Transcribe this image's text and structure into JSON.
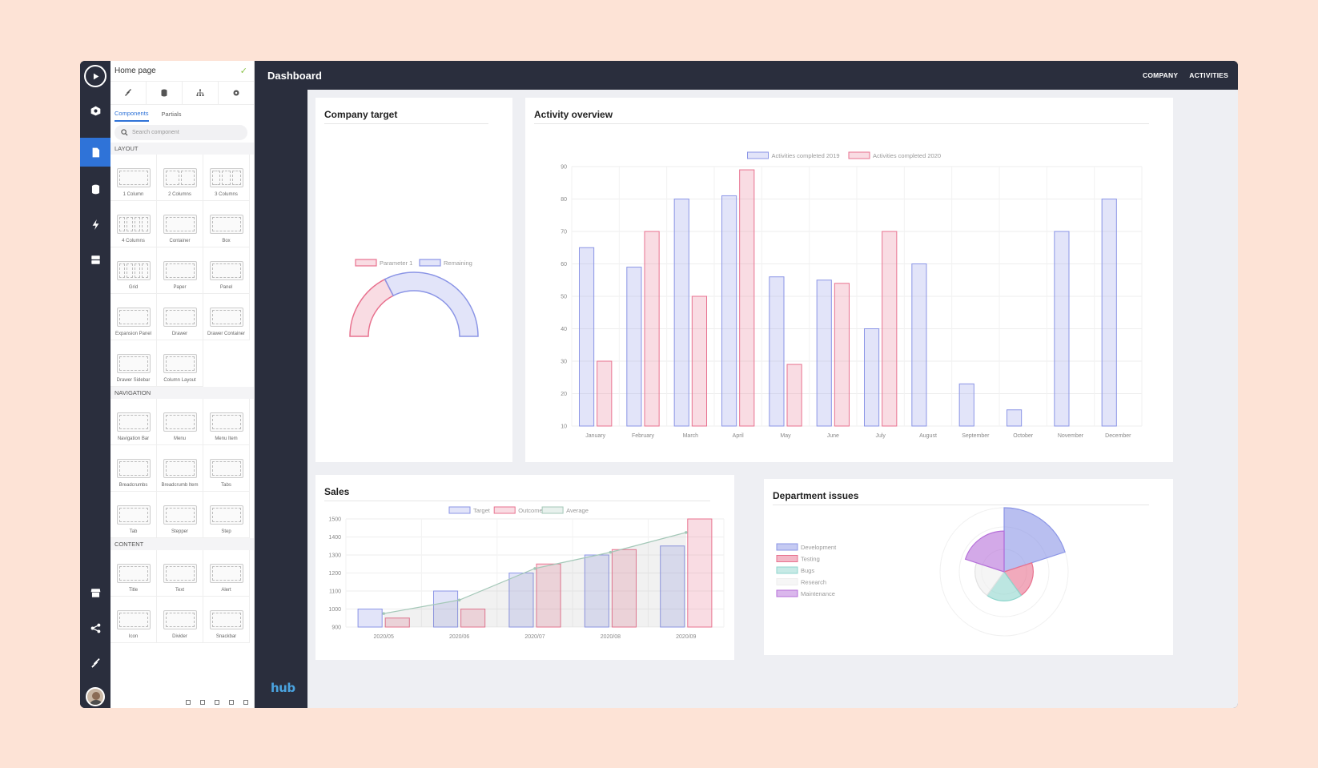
{
  "app": {
    "title": "Dashboard",
    "nav": [
      "COMPANY",
      "ACTIVITIES"
    ],
    "logo": "hub",
    "accent": "#2f73d8"
  },
  "rail": {
    "icons": [
      "play-icon",
      "box-icon",
      "page-icon",
      "database-icon",
      "lightning-icon",
      "server-icon",
      "store-icon",
      "share-icon",
      "tools-icon",
      "avatar"
    ]
  },
  "panel": {
    "page_name": "Home page",
    "tabs": [
      "Components",
      "Partials"
    ],
    "search_placeholder": "Search component",
    "sections": [
      {
        "title": "LAYOUT",
        "items": [
          "1 Column",
          "2 Columns",
          "3 Columns",
          "4 Columns",
          "Container",
          "Box",
          "Grid",
          "Paper",
          "Panel",
          "Expansion Panel",
          "Drawer",
          "Drawer Container",
          "Drawer Sidebar",
          "Column Layout"
        ]
      },
      {
        "title": "NAVIGATION",
        "items": [
          "Navigation Bar",
          "Menu",
          "Menu Item",
          "Breadcrumbs",
          "Breadcrumb Item",
          "Tabs",
          "Tab",
          "Stepper",
          "Step"
        ]
      },
      {
        "title": "CONTENT",
        "items": [
          "Title",
          "Text",
          "Alert",
          "Icon",
          "Divider",
          "Snackbar"
        ]
      }
    ],
    "thumb_labels": {
      "title": "Title",
      "menu": "Menu",
      "step": "1"
    }
  },
  "cards": {
    "company_target": "Company target",
    "activity_overview": "Activity overview",
    "sales": "Sales",
    "department_issues": "Department issues"
  },
  "chart_data": [
    {
      "id": "company_target",
      "type": "pie",
      "subtype": "half-doughnut",
      "legend": [
        "Parameter 1",
        "Remaining"
      ],
      "values": [
        35,
        65
      ],
      "colors": [
        "#e8728f",
        "#8b95e6"
      ]
    },
    {
      "id": "activity_overview",
      "type": "bar",
      "categories": [
        "January",
        "February",
        "March",
        "April",
        "May",
        "June",
        "July",
        "August",
        "September",
        "October",
        "November",
        "December"
      ],
      "series": [
        {
          "name": "Activities completed 2019",
          "values": [
            65,
            59,
            80,
            81,
            56,
            55,
            40,
            60,
            23,
            15,
            70,
            80
          ],
          "color": "#8b95e6"
        },
        {
          "name": "Activities completed 2020",
          "values": [
            30,
            70,
            50,
            89,
            29,
            54,
            70,
            null,
            null,
            null,
            null,
            null
          ],
          "color": "#e8728f"
        }
      ],
      "yticks": [
        10,
        20,
        30,
        40,
        50,
        60,
        70,
        80,
        90
      ],
      "ylim": [
        10,
        90
      ],
      "grid": true,
      "legend": "top"
    },
    {
      "id": "sales",
      "type": "bar",
      "categories": [
        "2020/05",
        "2020/06",
        "2020/07",
        "2020/08",
        "2020/09"
      ],
      "series": [
        {
          "name": "Target",
          "values": [
            1000,
            1100,
            1200,
            1300,
            1350
          ],
          "color": "#8b95e6"
        },
        {
          "name": "Outcome",
          "values": [
            950,
            1000,
            1250,
            1330,
            1500
          ],
          "color": "#e8728f"
        },
        {
          "name": "Average",
          "type": "line",
          "values": [
            975,
            1050,
            1225,
            1315,
            1425
          ],
          "color": "#a4c8b8"
        }
      ],
      "yticks": [
        900,
        1000,
        1100,
        1200,
        1300,
        1400,
        1500
      ],
      "ylim": [
        900,
        1500
      ],
      "grid": true,
      "legend": "top"
    },
    {
      "id": "department_issues",
      "type": "pie",
      "subtype": "polar-area",
      "legend": [
        "Development",
        "Testing",
        "Bugs",
        "Research",
        "Maintenance"
      ],
      "values": [
        11,
        5,
        5,
        5,
        7
      ],
      "colors": [
        "#8b95e6",
        "#e8728f",
        "#8fd6cd",
        "#eeeeee",
        "#b56fd9"
      ],
      "legend_position": "left"
    }
  ]
}
